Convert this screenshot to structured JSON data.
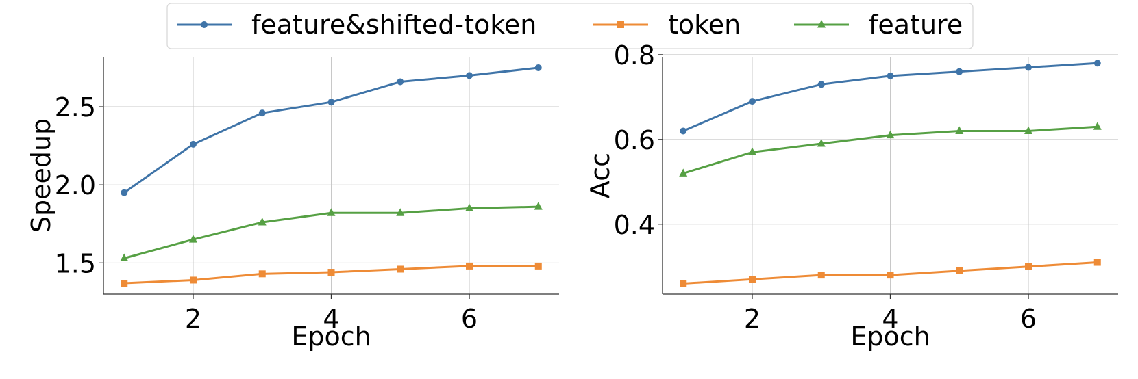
{
  "legend": {
    "placement": "top-center",
    "entries": [
      {
        "label": "feature&shifted-token",
        "color": "#3f74a8",
        "marker": "circle"
      },
      {
        "label": "token",
        "color": "#ee8b36",
        "marker": "square"
      },
      {
        "label": "feature",
        "color": "#56a044",
        "marker": "triangle"
      }
    ]
  },
  "chart_data": [
    {
      "type": "line",
      "xlabel": "Epoch",
      "ylabel": "Speedup",
      "xlim": [
        0.7,
        7.3
      ],
      "ylim": [
        1.3,
        2.82
      ],
      "xticks": [
        2,
        4,
        6
      ],
      "yticks": [
        1.5,
        2.0,
        2.5
      ],
      "ytick_labels": [
        "1.5",
        "2.0",
        "2.5"
      ],
      "grid": true,
      "x": [
        1,
        2,
        3,
        4,
        5,
        6,
        7
      ],
      "series": [
        {
          "name": "feature&shifted-token",
          "color": "#3f74a8",
          "marker": "circle",
          "values": [
            1.95,
            2.26,
            2.46,
            2.53,
            2.66,
            2.7,
            2.75
          ]
        },
        {
          "name": "token",
          "color": "#ee8b36",
          "marker": "square",
          "values": [
            1.37,
            1.39,
            1.43,
            1.44,
            1.46,
            1.48,
            1.48
          ]
        },
        {
          "name": "feature",
          "color": "#56a044",
          "marker": "triangle",
          "values": [
            1.53,
            1.65,
            1.76,
            1.82,
            1.82,
            1.85,
            1.86
          ]
        }
      ]
    },
    {
      "type": "line",
      "xlabel": "Epoch",
      "ylabel": "Acc",
      "xlim": [
        0.7,
        7.3
      ],
      "ylim": [
        0.235,
        0.795
      ],
      "xticks": [
        2,
        4,
        6
      ],
      "yticks": [
        0.4,
        0.6,
        0.8
      ],
      "ytick_labels": [
        "0.4",
        "0.6",
        "0.8"
      ],
      "grid": true,
      "x": [
        1,
        2,
        3,
        4,
        5,
        6,
        7
      ],
      "series": [
        {
          "name": "feature&shifted-token",
          "color": "#3f74a8",
          "marker": "circle",
          "values": [
            0.62,
            0.69,
            0.73,
            0.75,
            0.76,
            0.77,
            0.78
          ]
        },
        {
          "name": "token",
          "color": "#ee8b36",
          "marker": "square",
          "values": [
            0.26,
            0.27,
            0.28,
            0.28,
            0.29,
            0.3,
            0.31
          ]
        },
        {
          "name": "feature",
          "color": "#56a044",
          "marker": "triangle",
          "values": [
            0.52,
            0.57,
            0.59,
            0.61,
            0.62,
            0.62,
            0.63
          ]
        }
      ]
    }
  ]
}
